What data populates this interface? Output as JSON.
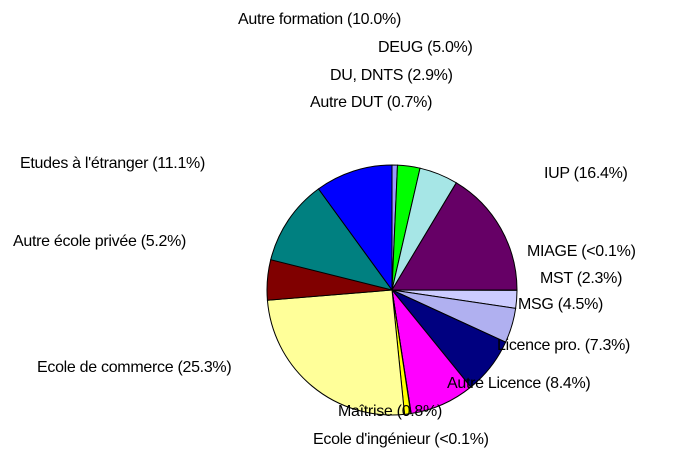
{
  "chart_data": {
    "type": "pie",
    "categories": [
      "Autre DUT",
      "DU, DNTS",
      "DEUG",
      "IUP",
      "MIAGE",
      "MST",
      "MSG",
      "Licence pro.",
      "Autre Licence",
      "Ecole d'ingénieur",
      "Maîtrise",
      "Ecole de commerce",
      "Autre école privée",
      "Etudes à l'étranger",
      "Autre formation"
    ],
    "values": [
      0.7,
      2.9,
      5.0,
      16.4,
      0.05,
      2.3,
      4.5,
      7.3,
      8.4,
      0.05,
      0.8,
      25.3,
      5.2,
      11.1,
      10.0
    ],
    "value_labels": [
      "0.7%",
      "2.9%",
      "5.0%",
      "16.4%",
      "<0.1%",
      "2.3%",
      "4.5%",
      "7.3%",
      "8.4%",
      "<0.1%",
      "0.8%",
      "25.3%",
      "5.2%",
      "11.1%",
      "10.0%"
    ],
    "colors": [
      "#9999ff",
      "#00ff00",
      "#a6e6e6",
      "#660066",
      "#0070c0",
      "#ccccff",
      "#b0b0f0",
      "#000080",
      "#ff00ff",
      "#e6e600",
      "#ffff00",
      "#ffff99",
      "#800000",
      "#008080",
      "#0000ff"
    ]
  }
}
